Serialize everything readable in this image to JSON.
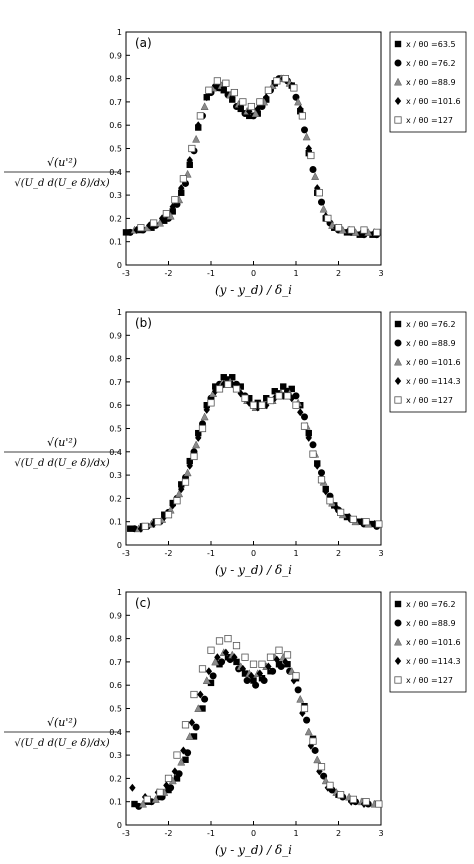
{
  "chart_data": [
    {
      "type": "scatter",
      "panel_label": "(a)",
      "ylabel": "√(u'²) / √(U_d d(U_e δ)/dx)",
      "xlabel": "(y - y_d) / δ_i",
      "xlim": [
        -3,
        3
      ],
      "ylim": [
        0,
        1
      ],
      "x_ticks": [
        "-3",
        "-2",
        "-1",
        "0",
        "1",
        "2",
        "3"
      ],
      "y_ticks": [
        "0",
        "0.1",
        "0.2",
        "0.3",
        "0.4",
        "0.5",
        "0.6",
        "0.7",
        "0.8",
        "0.9",
        "1"
      ],
      "grid": false,
      "legend_position": "top-right",
      "series": [
        {
          "name": "x / θ0 =63.5",
          "marker": "square-filled",
          "x": [
            -3.0,
            -2.7,
            -2.4,
            -2.1,
            -1.9,
            -1.7,
            -1.5,
            -1.3,
            -1.1,
            -0.9,
            -0.7,
            -0.5,
            -0.3,
            -0.1,
            0.1,
            0.3,
            0.5,
            0.7,
            0.9,
            1.1,
            1.3,
            1.5,
            1.7,
            1.9,
            2.2,
            2.5,
            2.8
          ],
          "y": [
            0.14,
            0.15,
            0.16,
            0.19,
            0.23,
            0.31,
            0.43,
            0.59,
            0.72,
            0.76,
            0.75,
            0.71,
            0.67,
            0.64,
            0.65,
            0.71,
            0.78,
            0.8,
            0.77,
            0.66,
            0.48,
            0.31,
            0.2,
            0.16,
            0.14,
            0.13,
            0.13
          ]
        },
        {
          "name": "x / θ0 =76.2",
          "marker": "circle-filled",
          "x": [
            -2.9,
            -2.6,
            -2.3,
            -2.0,
            -1.8,
            -1.6,
            -1.4,
            -1.2,
            -1.0,
            -0.8,
            -0.6,
            -0.4,
            -0.2,
            0.0,
            0.2,
            0.4,
            0.6,
            0.8,
            1.0,
            1.2,
            1.4,
            1.6,
            1.8,
            2.0,
            2.3,
            2.6,
            2.9
          ],
          "y": [
            0.14,
            0.15,
            0.17,
            0.2,
            0.26,
            0.35,
            0.49,
            0.64,
            0.74,
            0.76,
            0.73,
            0.68,
            0.65,
            0.64,
            0.68,
            0.75,
            0.8,
            0.79,
            0.72,
            0.58,
            0.41,
            0.27,
            0.18,
            0.15,
            0.14,
            0.13,
            0.13
          ]
        },
        {
          "name": "x / θ0 =88.9",
          "marker": "triangle-gray",
          "x": [
            -2.8,
            -2.5,
            -2.2,
            -1.95,
            -1.75,
            -1.55,
            -1.35,
            -1.15,
            -0.95,
            -0.75,
            -0.55,
            -0.35,
            -0.15,
            0.05,
            0.25,
            0.45,
            0.65,
            0.85,
            1.05,
            1.25,
            1.45,
            1.65,
            1.85,
            2.1,
            2.4,
            2.7
          ],
          "y": [
            0.15,
            0.16,
            0.18,
            0.21,
            0.28,
            0.39,
            0.54,
            0.68,
            0.76,
            0.77,
            0.73,
            0.69,
            0.66,
            0.65,
            0.7,
            0.77,
            0.8,
            0.78,
            0.7,
            0.55,
            0.38,
            0.24,
            0.17,
            0.15,
            0.14,
            0.14
          ]
        },
        {
          "name": "x / θ0 =101.6",
          "marker": "diamond-filled",
          "x": [
            -2.75,
            -2.45,
            -2.15,
            -1.9,
            -1.7,
            -1.5,
            -1.3,
            -1.1,
            -0.9,
            -0.7,
            -0.5,
            -0.3,
            -0.1,
            0.1,
            0.3,
            0.5,
            0.7,
            0.9,
            1.1,
            1.3,
            1.5,
            1.7,
            1.95,
            2.25,
            2.55,
            2.85
          ],
          "y": [
            0.15,
            0.17,
            0.2,
            0.25,
            0.33,
            0.45,
            0.6,
            0.72,
            0.77,
            0.76,
            0.72,
            0.68,
            0.66,
            0.67,
            0.72,
            0.78,
            0.8,
            0.77,
            0.67,
            0.5,
            0.33,
            0.21,
            0.16,
            0.15,
            0.14,
            0.14
          ]
        },
        {
          "name": "x / θ0 =127",
          "marker": "square-open",
          "x": [
            -2.65,
            -2.35,
            -2.05,
            -1.85,
            -1.65,
            -1.45,
            -1.25,
            -1.05,
            -0.85,
            -0.65,
            -0.45,
            -0.25,
            -0.05,
            0.15,
            0.35,
            0.55,
            0.75,
            0.95,
            1.15,
            1.35,
            1.55,
            1.75,
            2.0,
            2.3,
            2.6,
            2.9
          ],
          "y": [
            0.16,
            0.18,
            0.22,
            0.28,
            0.37,
            0.5,
            0.64,
            0.75,
            0.79,
            0.78,
            0.74,
            0.7,
            0.68,
            0.7,
            0.75,
            0.79,
            0.8,
            0.76,
            0.64,
            0.47,
            0.31,
            0.2,
            0.16,
            0.15,
            0.15,
            0.14
          ]
        }
      ]
    },
    {
      "type": "scatter",
      "panel_label": "(b)",
      "ylabel": "√(u'²) / √(U_d d(U_e δ)/dx)",
      "xlabel": "(y - y_d) / δ_i",
      "xlim": [
        -3,
        3
      ],
      "ylim": [
        0,
        1
      ],
      "x_ticks": [
        "-3",
        "-2",
        "-1",
        "0",
        "1",
        "2",
        "3"
      ],
      "y_ticks": [
        "0",
        "0.1",
        "0.2",
        "0.3",
        "0.4",
        "0.5",
        "0.6",
        "0.7",
        "0.8",
        "0.9",
        "1"
      ],
      "grid": false,
      "legend_position": "top-right",
      "series": [
        {
          "name": "x / θ0 =76.2",
          "marker": "square-filled",
          "x": [
            -2.9,
            -2.6,
            -2.3,
            -2.1,
            -1.9,
            -1.7,
            -1.5,
            -1.3,
            -1.1,
            -0.9,
            -0.7,
            -0.5,
            -0.3,
            -0.1,
            0.1,
            0.3,
            0.5,
            0.7,
            0.9,
            1.1,
            1.3,
            1.5,
            1.7,
            1.9,
            2.2,
            2.5,
            2.8
          ],
          "y": [
            0.07,
            0.08,
            0.1,
            0.13,
            0.18,
            0.26,
            0.36,
            0.48,
            0.6,
            0.68,
            0.72,
            0.72,
            0.68,
            0.63,
            0.61,
            0.63,
            0.66,
            0.68,
            0.67,
            0.6,
            0.48,
            0.35,
            0.24,
            0.17,
            0.12,
            0.1,
            0.09
          ]
        },
        {
          "name": "x / θ0 =88.9",
          "marker": "circle-filled",
          "x": [
            -2.8,
            -2.5,
            -2.2,
            -2.0,
            -1.8,
            -1.6,
            -1.4,
            -1.2,
            -1.0,
            -0.8,
            -0.6,
            -0.4,
            -0.2,
            0.0,
            0.2,
            0.4,
            0.6,
            0.8,
            1.0,
            1.2,
            1.4,
            1.6,
            1.8,
            2.0,
            2.3,
            2.6,
            2.9
          ],
          "y": [
            0.07,
            0.08,
            0.1,
            0.14,
            0.2,
            0.29,
            0.4,
            0.52,
            0.63,
            0.69,
            0.71,
            0.69,
            0.64,
            0.6,
            0.6,
            0.62,
            0.65,
            0.66,
            0.64,
            0.55,
            0.43,
            0.31,
            0.21,
            0.15,
            0.11,
            0.09,
            0.08
          ]
        },
        {
          "name": "x / θ0 =101.6",
          "marker": "triangle-gray",
          "x": [
            -2.7,
            -2.4,
            -2.15,
            -1.95,
            -1.75,
            -1.55,
            -1.35,
            -1.15,
            -0.95,
            -0.75,
            -0.55,
            -0.35,
            -0.15,
            0.05,
            0.25,
            0.45,
            0.65,
            0.85,
            1.05,
            1.25,
            1.45,
            1.65,
            1.85,
            2.1,
            2.4,
            2.7
          ],
          "y": [
            0.07,
            0.09,
            0.11,
            0.15,
            0.22,
            0.31,
            0.43,
            0.55,
            0.65,
            0.69,
            0.7,
            0.67,
            0.62,
            0.59,
            0.6,
            0.62,
            0.65,
            0.65,
            0.61,
            0.51,
            0.39,
            0.27,
            0.18,
            0.13,
            0.1,
            0.09
          ]
        },
        {
          "name": "x / θ0 =114.3",
          "marker": "diamond-filled",
          "x": [
            -2.65,
            -2.35,
            -2.1,
            -1.9,
            -1.7,
            -1.5,
            -1.3,
            -1.1,
            -0.9,
            -0.7,
            -0.5,
            -0.3,
            -0.1,
            0.1,
            0.3,
            0.5,
            0.7,
            0.9,
            1.1,
            1.3,
            1.5,
            1.7,
            1.95,
            2.25,
            2.55,
            2.85
          ],
          "y": [
            0.07,
            0.09,
            0.12,
            0.17,
            0.24,
            0.34,
            0.46,
            0.58,
            0.66,
            0.69,
            0.69,
            0.65,
            0.61,
            0.59,
            0.6,
            0.63,
            0.64,
            0.63,
            0.57,
            0.46,
            0.34,
            0.23,
            0.16,
            0.12,
            0.1,
            0.09
          ]
        },
        {
          "name": "x / θ0 =127",
          "marker": "square-open",
          "x": [
            -2.55,
            -2.25,
            -2.0,
            -1.8,
            -1.6,
            -1.4,
            -1.2,
            -1.0,
            -0.8,
            -0.6,
            -0.4,
            -0.2,
            0.0,
            0.2,
            0.4,
            0.6,
            0.8,
            1.0,
            1.2,
            1.4,
            1.6,
            1.8,
            2.05,
            2.35,
            2.65,
            2.95
          ],
          "y": [
            0.08,
            0.1,
            0.13,
            0.19,
            0.27,
            0.38,
            0.5,
            0.61,
            0.67,
            0.69,
            0.67,
            0.63,
            0.6,
            0.6,
            0.62,
            0.64,
            0.64,
            0.6,
            0.51,
            0.39,
            0.28,
            0.19,
            0.14,
            0.11,
            0.1,
            0.09
          ]
        }
      ]
    },
    {
      "type": "scatter",
      "panel_label": "(c)",
      "ylabel": "√(u'²) / √(U_d d(U_e δ)/dx)",
      "xlabel": "(y - y_d) / δ_i",
      "xlim": [
        -3,
        3
      ],
      "ylim": [
        0,
        1
      ],
      "x_ticks": [
        "-3",
        "-2",
        "-1",
        "0",
        "1",
        "2",
        "3"
      ],
      "y_ticks": [
        "0",
        "0.1",
        "0.2",
        "0.3",
        "0.4",
        "0.5",
        "0.6",
        "0.7",
        "0.8",
        "0.9",
        "1"
      ],
      "grid": false,
      "legend_position": "top-right",
      "series": [
        {
          "name": "x / θ0 =76.2",
          "marker": "square-filled",
          "x": [
            -2.8,
            -2.5,
            -2.2,
            -2.0,
            -1.8,
            -1.6,
            -1.4,
            -1.2,
            -1.0,
            -0.8,
            -0.6,
            -0.4,
            -0.2,
            0.0,
            0.2,
            0.4,
            0.6,
            0.8,
            1.0,
            1.2,
            1.4,
            1.6,
            1.8,
            2.0,
            2.3,
            2.6,
            2.9
          ],
          "y": [
            0.09,
            0.1,
            0.12,
            0.15,
            0.2,
            0.28,
            0.38,
            0.5,
            0.61,
            0.69,
            0.72,
            0.7,
            0.65,
            0.62,
            0.63,
            0.66,
            0.69,
            0.69,
            0.63,
            0.51,
            0.37,
            0.25,
            0.17,
            0.13,
            0.11,
            0.1,
            0.09
          ]
        },
        {
          "name": "x / θ0 =88.9",
          "marker": "circle-filled",
          "x": [
            -2.7,
            -2.4,
            -2.15,
            -1.95,
            -1.75,
            -1.55,
            -1.35,
            -1.15,
            -0.95,
            -0.75,
            -0.55,
            -0.35,
            -0.15,
            0.05,
            0.25,
            0.45,
            0.65,
            0.85,
            1.05,
            1.25,
            1.45,
            1.65,
            1.85,
            2.1,
            2.4,
            2.7
          ],
          "y": [
            0.08,
            0.1,
            0.12,
            0.16,
            0.22,
            0.31,
            0.42,
            0.54,
            0.64,
            0.7,
            0.71,
            0.67,
            0.62,
            0.6,
            0.62,
            0.66,
            0.68,
            0.66,
            0.58,
            0.45,
            0.32,
            0.21,
            0.15,
            0.12,
            0.1,
            0.09
          ]
        },
        {
          "name": "x / θ0 =101.6",
          "marker": "triangle-gray",
          "x": [
            -2.6,
            -2.3,
            -2.1,
            -1.9,
            -1.7,
            -1.5,
            -1.3,
            -1.1,
            -0.9,
            -0.7,
            -0.5,
            -0.3,
            -0.1,
            0.1,
            0.3,
            0.5,
            0.7,
            0.9,
            1.1,
            1.3,
            1.5,
            1.7,
            1.95,
            2.25,
            2.55,
            2.85
          ],
          "y": [
            0.09,
            0.11,
            0.14,
            0.19,
            0.27,
            0.38,
            0.5,
            0.62,
            0.7,
            0.74,
            0.73,
            0.68,
            0.65,
            0.65,
            0.68,
            0.72,
            0.72,
            0.66,
            0.54,
            0.4,
            0.28,
            0.19,
            0.14,
            0.12,
            0.1,
            0.09
          ]
        },
        {
          "name": "x / θ0 =114.3",
          "marker": "diamond-filled",
          "x": [
            -2.85,
            -2.55,
            -2.25,
            -2.05,
            -1.85,
            -1.65,
            -1.45,
            -1.25,
            -1.05,
            -0.85,
            -0.65,
            -0.45,
            -0.25,
            -0.05,
            0.15,
            0.35,
            0.55,
            0.75,
            0.95,
            1.15,
            1.35,
            1.55,
            1.75,
            2.0,
            2.3,
            2.6
          ],
          "y": [
            0.16,
            0.12,
            0.14,
            0.17,
            0.23,
            0.32,
            0.44,
            0.56,
            0.66,
            0.72,
            0.74,
            0.72,
            0.67,
            0.64,
            0.65,
            0.68,
            0.71,
            0.7,
            0.62,
            0.48,
            0.34,
            0.23,
            0.16,
            0.13,
            0.1,
            0.09
          ]
        },
        {
          "name": "x / θ0 =127",
          "marker": "square-open",
          "x": [
            -2.5,
            -2.2,
            -2.0,
            -1.8,
            -1.6,
            -1.4,
            -1.2,
            -1.0,
            -0.8,
            -0.6,
            -0.4,
            -0.2,
            0.0,
            0.2,
            0.4,
            0.6,
            0.8,
            1.0,
            1.2,
            1.4,
            1.6,
            1.8,
            2.05,
            2.35,
            2.65,
            2.95
          ],
          "y": [
            0.11,
            0.14,
            0.2,
            0.3,
            0.43,
            0.56,
            0.67,
            0.75,
            0.79,
            0.8,
            0.77,
            0.72,
            0.69,
            0.69,
            0.72,
            0.75,
            0.73,
            0.64,
            0.5,
            0.36,
            0.25,
            0.17,
            0.13,
            0.11,
            0.1,
            0.09
          ]
        }
      ]
    }
  ]
}
